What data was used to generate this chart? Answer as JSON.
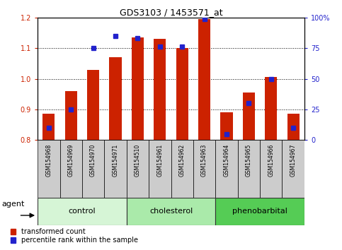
{
  "title": "GDS3103 / 1453571_at",
  "samples": [
    "GSM154968",
    "GSM154969",
    "GSM154970",
    "GSM154971",
    "GSM154510",
    "GSM154961",
    "GSM154962",
    "GSM154963",
    "GSM154964",
    "GSM154965",
    "GSM154966",
    "GSM154967"
  ],
  "red_values": [
    0.885,
    0.96,
    1.03,
    1.07,
    1.135,
    1.13,
    1.1,
    1.195,
    0.89,
    0.955,
    1.005,
    0.885
  ],
  "blue_pct": [
    10,
    25,
    75,
    85,
    83,
    76,
    76,
    99,
    5,
    30,
    50,
    10
  ],
  "ylim_left": [
    0.8,
    1.2
  ],
  "ylim_right": [
    0,
    100
  ],
  "yticks_left": [
    0.8,
    0.9,
    1.0,
    1.1,
    1.2
  ],
  "yticks_right": [
    0,
    25,
    50,
    75,
    100
  ],
  "ytick_labels_right": [
    "0",
    "25",
    "50",
    "75",
    "100%"
  ],
  "groups": [
    {
      "label": "control",
      "start": 0,
      "end": 4,
      "color": "#d6f5d6"
    },
    {
      "label": "cholesterol",
      "start": 4,
      "end": 8,
      "color": "#aaeaaa"
    },
    {
      "label": "phenobarbital",
      "start": 8,
      "end": 12,
      "color": "#55cc55"
    }
  ],
  "agent_label": "agent",
  "legend_red": "transformed count",
  "legend_blue": "percentile rank within the sample",
  "bar_color_red": "#cc2200",
  "bar_color_blue": "#2222cc",
  "background_samples": "#cccccc",
  "base_value": 0.8
}
